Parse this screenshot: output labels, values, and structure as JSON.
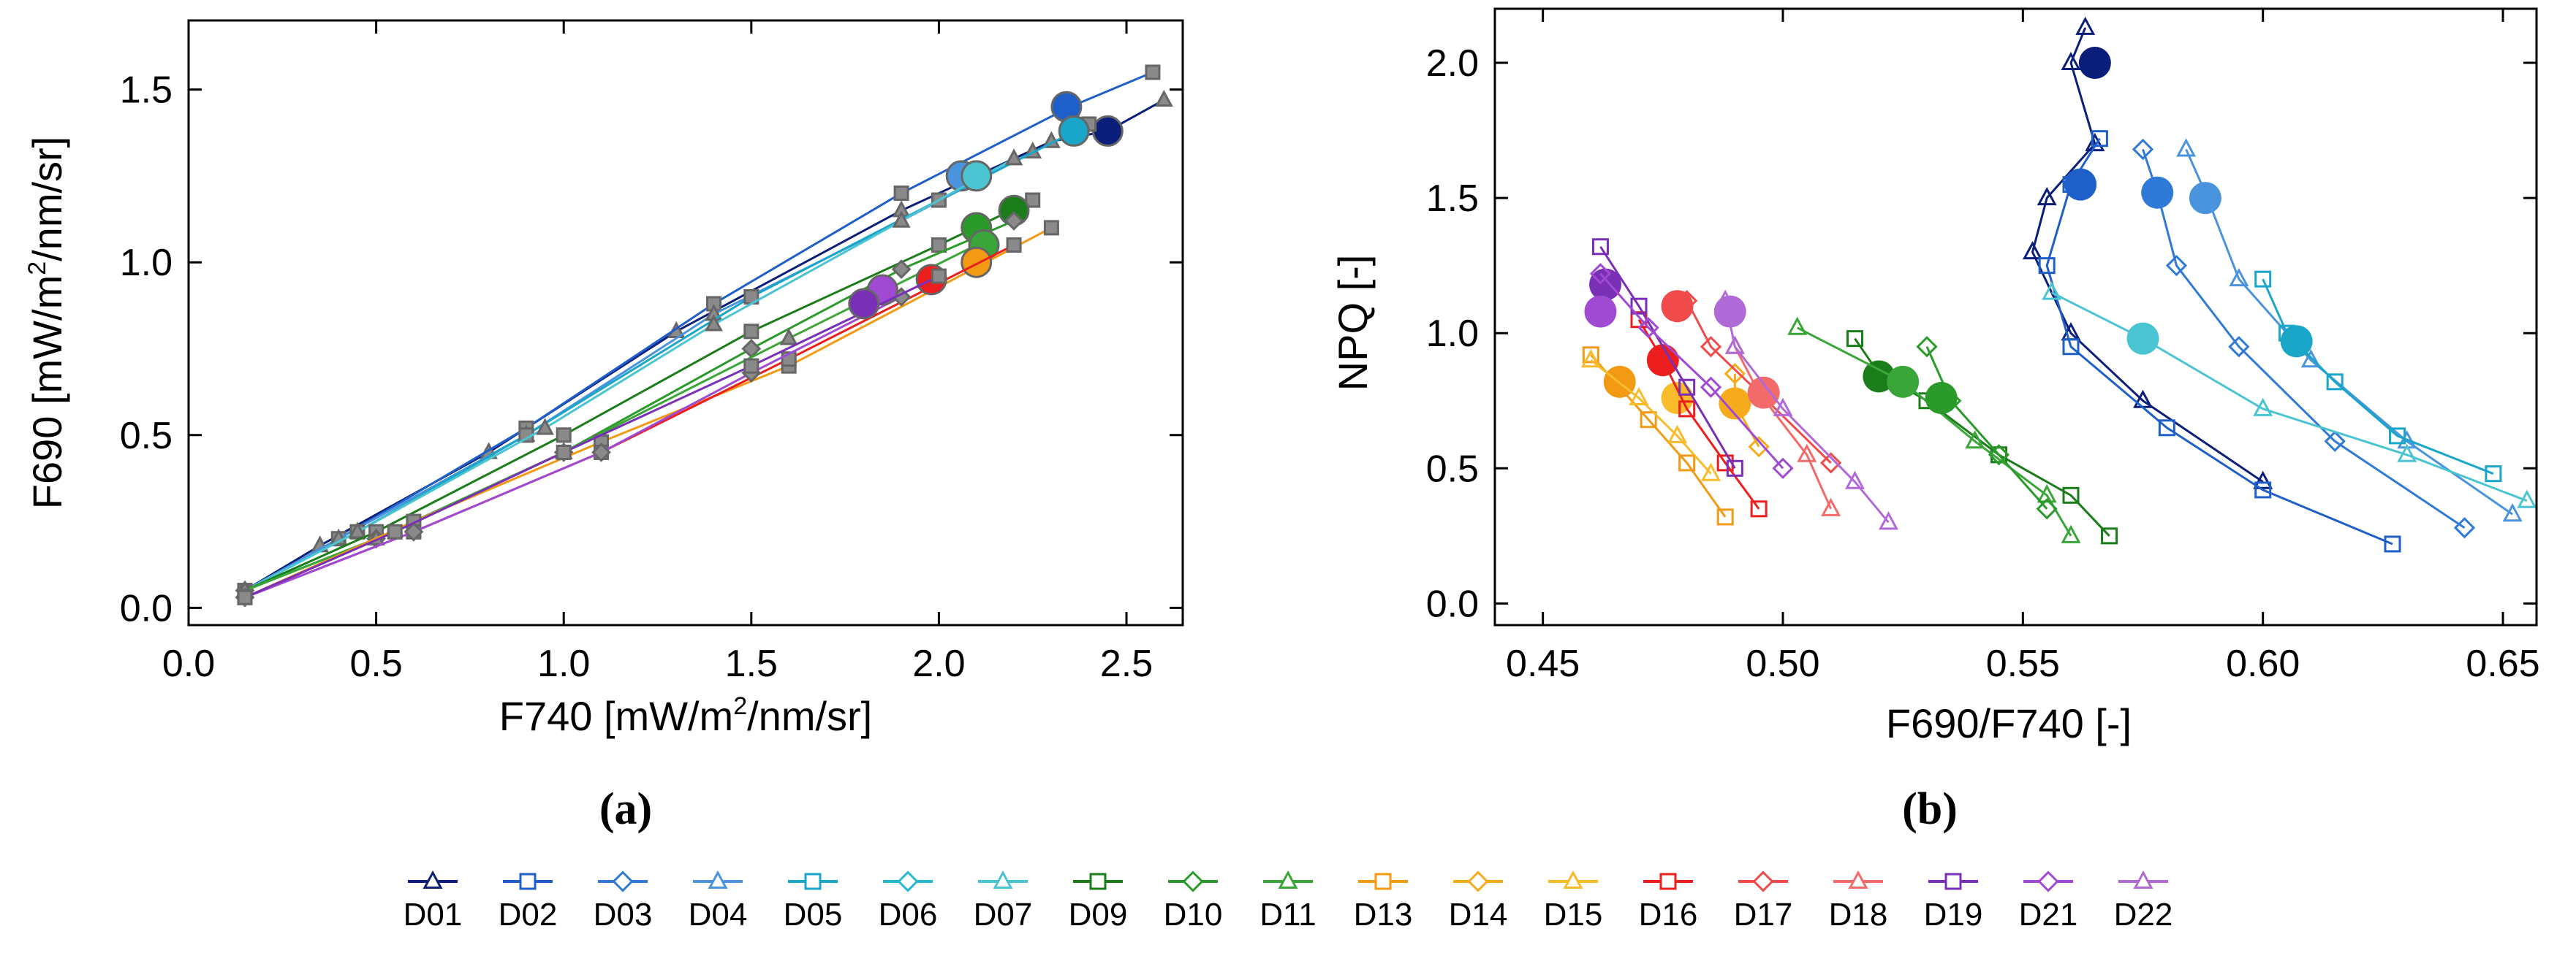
{
  "colors": {
    "D01": "#0b1f7a",
    "D02": "#1f5fc9",
    "D03": "#2f7ad6",
    "D04": "#4a93dd",
    "D05": "#1aa6c9",
    "D06": "#25b8cf",
    "D07": "#4bc4d2",
    "D09": "#1a7d1a",
    "D10": "#2a9a2a",
    "D11": "#3aa63a",
    "D13": "#f39a14",
    "D14": "#f6ab1c",
    "D15": "#f8bb2a",
    "D16": "#ec1e1e",
    "D17": "#f04a4a",
    "D18": "#f36a6a",
    "D19": "#7a2fb7",
    "D21": "#a04ad4",
    "D22": "#b06ad8"
  },
  "chart_data": [
    {
      "type": "scatter",
      "panel_label": "(a)",
      "xlabel_main": "F740 [mW/m",
      "xlabel_sup": "2",
      "xlabel_rest": "/nm/sr]",
      "ylabel_main": "F690 [mW/m",
      "ylabel_sup": "2",
      "ylabel_rest": "/nm/sr]",
      "xlim": [
        0.0,
        2.65
      ],
      "ylim": [
        -0.05,
        1.7
      ],
      "xticks": [
        "0.0",
        "0.5",
        "1.0",
        "1.5",
        "2.0",
        "2.5"
      ],
      "yticks": [
        "0.0",
        "0.5",
        "1.0",
        "1.5"
      ],
      "series": [
        {
          "name": "D01",
          "x": [
            0.15,
            0.35,
            0.8,
            1.3,
            1.9,
            2.3,
            2.45,
            2.6
          ],
          "y": [
            0.05,
            0.18,
            0.45,
            0.8,
            1.15,
            1.35,
            1.38,
            1.47
          ],
          "dot": [
            2.45,
            1.38
          ]
        },
        {
          "name": "D02",
          "x": [
            0.15,
            0.4,
            0.9,
            1.4,
            1.9,
            2.35,
            2.57
          ],
          "y": [
            0.05,
            0.2,
            0.52,
            0.88,
            1.2,
            1.45,
            1.55
          ],
          "dot": [
            2.34,
            1.45
          ]
        },
        {
          "name": "D04",
          "x": [
            0.15,
            0.4,
            0.9,
            1.4,
            1.9,
            2.25
          ],
          "y": [
            0.05,
            0.2,
            0.5,
            0.85,
            1.12,
            1.32
          ],
          "dot": [
            2.06,
            1.25
          ]
        },
        {
          "name": "D05",
          "x": [
            0.15,
            0.45,
            0.9,
            1.5,
            2.0,
            2.4
          ],
          "y": [
            0.05,
            0.22,
            0.5,
            0.9,
            1.18,
            1.4
          ],
          "dot": [
            2.36,
            1.38
          ]
        },
        {
          "name": "D07",
          "x": [
            0.15,
            0.45,
            0.95,
            1.4,
            1.9,
            2.2
          ],
          "y": [
            0.05,
            0.22,
            0.52,
            0.82,
            1.12,
            1.3
          ],
          "dot": [
            2.1,
            1.25
          ]
        },
        {
          "name": "D09",
          "x": [
            0.15,
            0.5,
            1.0,
            1.5,
            2.0,
            2.25
          ],
          "y": [
            0.05,
            0.22,
            0.5,
            0.8,
            1.05,
            1.18
          ],
          "dot": [
            2.2,
            1.15
          ]
        },
        {
          "name": "D10",
          "x": [
            0.15,
            0.5,
            1.0,
            1.5,
            1.9,
            2.2
          ],
          "y": [
            0.05,
            0.2,
            0.45,
            0.75,
            0.98,
            1.12
          ],
          "dot": [
            2.1,
            1.1
          ]
        },
        {
          "name": "D11",
          "x": [
            0.15,
            0.5,
            1.0,
            1.6,
            2.1
          ],
          "y": [
            0.05,
            0.2,
            0.45,
            0.78,
            1.05
          ],
          "dot": [
            2.12,
            1.05
          ]
        },
        {
          "name": "D13",
          "x": [
            0.15,
            0.6,
            1.1,
            1.6,
            2.3
          ],
          "y": [
            0.03,
            0.25,
            0.48,
            0.7,
            1.1
          ],
          "dot": [
            2.1,
            1.0
          ]
        },
        {
          "name": "D16",
          "x": [
            0.15,
            0.6,
            1.1,
            1.6,
            2.2
          ],
          "y": [
            0.03,
            0.22,
            0.45,
            0.72,
            1.05
          ],
          "dot": [
            1.98,
            0.95
          ]
        },
        {
          "name": "D21",
          "x": [
            0.15,
            0.6,
            1.1,
            1.5,
            1.9
          ],
          "y": [
            0.03,
            0.22,
            0.45,
            0.68,
            0.9
          ],
          "dot": [
            1.85,
            0.92
          ]
        },
        {
          "name": "D19",
          "x": [
            0.15,
            0.55,
            1.0,
            1.5,
            2.0
          ],
          "y": [
            0.03,
            0.22,
            0.45,
            0.7,
            0.96
          ],
          "dot": [
            1.8,
            0.88
          ]
        }
      ]
    },
    {
      "type": "scatter",
      "panel_label": "(b)",
      "xlabel": "F690/F740 [-]",
      "ylabel": "NPQ [-]",
      "xlim": [
        0.44,
        0.657
      ],
      "ylim": [
        -0.08,
        2.2
      ],
      "xticks": [
        "0.45",
        "0.50",
        "0.55",
        "0.60",
        "0.65"
      ],
      "yticks": [
        "0.0",
        "0.5",
        "1.0",
        "1.5",
        "2.0"
      ],
      "series": [
        {
          "name": "D01",
          "x": [
            0.563,
            0.56,
            0.565,
            0.555,
            0.552,
            0.56,
            0.575,
            0.6
          ],
          "y": [
            2.13,
            2.0,
            1.7,
            1.5,
            1.3,
            1.0,
            0.75,
            0.45
          ],
          "dot": [
            0.565,
            2.0
          ]
        },
        {
          "name": "D02",
          "x": [
            0.566,
            0.56,
            0.555,
            0.56,
            0.58,
            0.6,
            0.627
          ],
          "y": [
            1.72,
            1.55,
            1.25,
            0.95,
            0.65,
            0.42,
            0.22
          ],
          "dot": [
            0.562,
            1.55
          ]
        },
        {
          "name": "D03",
          "x": [
            0.575,
            0.578,
            0.582,
            0.595,
            0.615,
            0.642
          ],
          "y": [
            1.68,
            1.52,
            1.25,
            0.95,
            0.6,
            0.28
          ],
          "dot": [
            0.578,
            1.52
          ]
        },
        {
          "name": "D04",
          "x": [
            0.584,
            0.588,
            0.595,
            0.61,
            0.63,
            0.652
          ],
          "y": [
            1.68,
            1.52,
            1.2,
            0.9,
            0.6,
            0.33
          ],
          "dot": [
            0.588,
            1.5
          ]
        },
        {
          "name": "D05",
          "x": [
            0.6,
            0.605,
            0.615,
            0.628,
            0.648
          ],
          "y": [
            1.2,
            1.0,
            0.82,
            0.62,
            0.48
          ],
          "dot": [
            0.607,
            0.97
          ]
        },
        {
          "name": "D07",
          "x": [
            0.556,
            0.575,
            0.6,
            0.63,
            0.655
          ],
          "y": [
            1.15,
            0.98,
            0.72,
            0.55,
            0.38
          ],
          "dot": [
            0.575,
            0.98
          ]
        },
        {
          "name": "D09",
          "x": [
            0.515,
            0.52,
            0.53,
            0.545,
            0.56,
            0.568
          ],
          "y": [
            0.98,
            0.85,
            0.75,
            0.55,
            0.4,
            0.25
          ],
          "dot": [
            0.52,
            0.84
          ]
        },
        {
          "name": "D11",
          "x": [
            0.503,
            0.525,
            0.54,
            0.555,
            0.56
          ],
          "y": [
            1.02,
            0.82,
            0.6,
            0.4,
            0.25
          ],
          "dot": [
            0.525,
            0.82
          ]
        },
        {
          "name": "D10",
          "x": [
            0.53,
            0.535,
            0.545,
            0.555
          ],
          "y": [
            0.95,
            0.75,
            0.55,
            0.35
          ],
          "dot": [
            0.533,
            0.76
          ]
        },
        {
          "name": "D13",
          "x": [
            0.46,
            0.465,
            0.472,
            0.48,
            0.488
          ],
          "y": [
            0.92,
            0.82,
            0.68,
            0.52,
            0.32
          ],
          "dot": [
            0.466,
            0.82
          ]
        },
        {
          "name": "D15",
          "x": [
            0.46,
            0.47,
            0.478,
            0.485
          ],
          "y": [
            0.9,
            0.76,
            0.62,
            0.48
          ],
          "dot": [
            0.478,
            0.76
          ]
        },
        {
          "name": "D14",
          "x": [
            0.49,
            0.49,
            0.495
          ],
          "y": [
            0.85,
            0.74,
            0.58
          ],
          "dot": [
            0.49,
            0.74
          ]
        },
        {
          "name": "D16",
          "x": [
            0.47,
            0.475,
            0.48,
            0.488,
            0.495
          ],
          "y": [
            1.05,
            0.9,
            0.72,
            0.52,
            0.35
          ],
          "dot": [
            0.475,
            0.9
          ]
        },
        {
          "name": "D17",
          "x": [
            0.48,
            0.485,
            0.495,
            0.51
          ],
          "y": [
            1.12,
            0.95,
            0.78,
            0.52
          ],
          "dot": [
            0.478,
            1.1
          ]
        },
        {
          "name": "D18",
          "x": [
            0.49,
            0.495,
            0.505,
            0.51
          ],
          "y": [
            0.95,
            0.78,
            0.55,
            0.35
          ],
          "dot": [
            0.496,
            0.78
          ]
        },
        {
          "name": "D19",
          "x": [
            0.462,
            0.47,
            0.48,
            0.49
          ],
          "y": [
            1.32,
            1.1,
            0.8,
            0.5
          ],
          "dot": [
            0.463,
            1.18
          ]
        },
        {
          "name": "D21",
          "x": [
            0.462,
            0.472,
            0.485,
            0.5
          ],
          "y": [
            1.22,
            1.02,
            0.8,
            0.5
          ],
          "dot": [
            0.462,
            1.08
          ]
        },
        {
          "name": "D22",
          "x": [
            0.488,
            0.49,
            0.5,
            0.515,
            0.522
          ],
          "y": [
            1.12,
            0.95,
            0.72,
            0.45,
            0.3
          ],
          "dot": [
            0.489,
            1.08
          ]
        }
      ]
    }
  ],
  "legend": [
    {
      "name": "D01",
      "marker": "triangle"
    },
    {
      "name": "D02",
      "marker": "square"
    },
    {
      "name": "D03",
      "marker": "diamond"
    },
    {
      "name": "D04",
      "marker": "triangle"
    },
    {
      "name": "D05",
      "marker": "square"
    },
    {
      "name": "D06",
      "marker": "diamond"
    },
    {
      "name": "D07",
      "marker": "triangle"
    },
    {
      "name": "D09",
      "marker": "square"
    },
    {
      "name": "D10",
      "marker": "diamond"
    },
    {
      "name": "D11",
      "marker": "triangle"
    },
    {
      "name": "D13",
      "marker": "square"
    },
    {
      "name": "D14",
      "marker": "diamond"
    },
    {
      "name": "D15",
      "marker": "triangle"
    },
    {
      "name": "D16",
      "marker": "square"
    },
    {
      "name": "D17",
      "marker": "diamond"
    },
    {
      "name": "D18",
      "marker": "triangle"
    },
    {
      "name": "D19",
      "marker": "square"
    },
    {
      "name": "D21",
      "marker": "diamond"
    },
    {
      "name": "D22",
      "marker": "triangle"
    }
  ]
}
